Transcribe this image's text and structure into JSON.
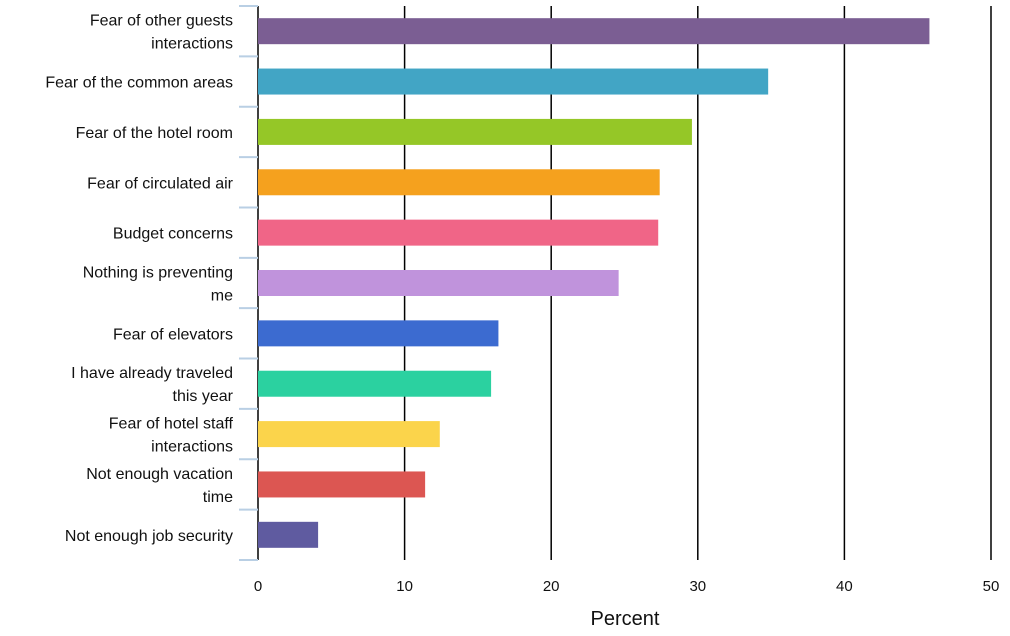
{
  "chart_data": {
    "type": "bar",
    "orientation": "horizontal",
    "title": "",
    "xlabel": "Percent",
    "ylabel": "",
    "xlim": [
      0,
      50
    ],
    "x_ticks": [
      0,
      10,
      20,
      30,
      40,
      50
    ],
    "grid": "vertical",
    "legend": "none",
    "categories": [
      "Fear of other guests interactions",
      "Fear of the common areas",
      "Fear of the hotel room",
      "Fear of circulated air",
      "Budget concerns",
      "Nothing is preventing me",
      "Fear of elevators",
      "I have already traveled this year",
      "Fear of hotel staff interactions",
      "Not enough vacation time",
      "Not enough job security"
    ],
    "category_lines": [
      [
        "Fear of other guests",
        "interactions"
      ],
      [
        "Fear of the common areas"
      ],
      [
        "Fear of the hotel room"
      ],
      [
        "Fear of circulated air"
      ],
      [
        "Budget concerns"
      ],
      [
        "Nothing is preventing",
        "me"
      ],
      [
        "Fear of elevators"
      ],
      [
        "I have already traveled",
        "this year"
      ],
      [
        "Fear of hotel staff",
        "interactions"
      ],
      [
        "Not enough vacation",
        "time"
      ],
      [
        "Not enough job security"
      ]
    ],
    "values": [
      45.8,
      34.8,
      29.6,
      27.4,
      27.3,
      24.6,
      16.4,
      15.9,
      12.4,
      11.4,
      4.1
    ],
    "colors": [
      "#7b5e93",
      "#42a5c5",
      "#95c727",
      "#f5a11e",
      "#f06587",
      "#c093dc",
      "#3c6bd0",
      "#2bd1a0",
      "#fbd44b",
      "#dc5652",
      "#5f5ba0"
    ]
  }
}
